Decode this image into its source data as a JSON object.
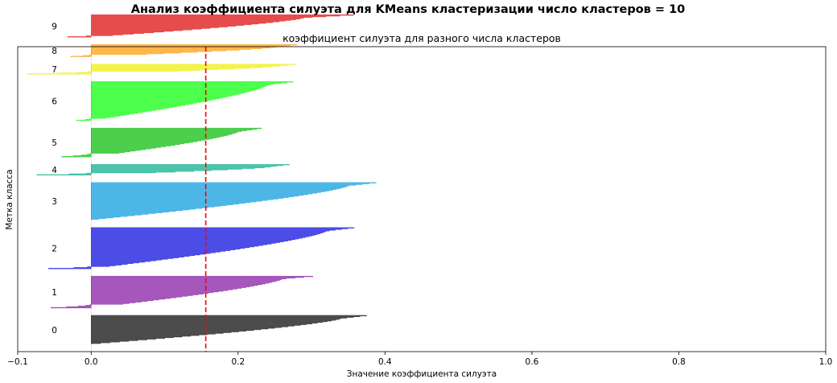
{
  "suptitle": "Анализ коэффициента силуэта для KMeans кластеризации число кластеров = 10",
  "chart_data": {
    "type": "area",
    "subtype": "silhouette",
    "title": "коэффициент силуэта для разного числа кластеров",
    "xlabel": "Значение коэффициента силуэта",
    "ylabel": "Метка класса",
    "xlim": [
      -0.1,
      1.0
    ],
    "xticks": [
      -0.1,
      0.0,
      0.2,
      0.4,
      0.6,
      0.8,
      1.0
    ],
    "xtick_labels": [
      "−0.1",
      "0.0",
      "0.2",
      "0.4",
      "0.6",
      "0.8",
      "1.0"
    ],
    "yticks": [],
    "ylim": [
      0,
      420
    ],
    "silhouette_avg": 0.156,
    "avg_line": {
      "color": "#ff0000",
      "style": "dashed"
    },
    "grid": false,
    "clusters": [
      {
        "label": "0",
        "size": 40,
        "max": 0.375,
        "min": 0.0,
        "knee": 0.34,
        "knee_pos": 0.1,
        "neg_frac": 0.0,
        "color": "#000000"
      },
      {
        "label": "1",
        "size": 44,
        "max": 0.302,
        "min": -0.055,
        "knee": 0.26,
        "knee_pos": 0.08,
        "neg_frac": 0.12,
        "color": "#7f0f9e"
      },
      {
        "label": "2",
        "size": 57,
        "max": 0.358,
        "min": -0.058,
        "knee": 0.32,
        "knee_pos": 0.08,
        "neg_frac": 0.06,
        "color": "#0000dd"
      },
      {
        "label": "3",
        "size": 52,
        "max": 0.388,
        "min": 0.0,
        "knee": 0.35,
        "knee_pos": 0.08,
        "neg_frac": 0.0,
        "color": "#0099dd"
      },
      {
        "label": "4",
        "size": 15,
        "max": 0.27,
        "min": -0.074,
        "knee": 0.24,
        "knee_pos": 0.25,
        "neg_frac": 0.2,
        "color": "#00aa88"
      },
      {
        "label": "5",
        "size": 40,
        "max": 0.232,
        "min": -0.04,
        "knee": 0.2,
        "knee_pos": 0.12,
        "neg_frac": 0.12,
        "color": "#00bb00"
      },
      {
        "label": "6",
        "size": 54,
        "max": 0.275,
        "min": -0.02,
        "knee": 0.24,
        "knee_pos": 0.08,
        "neg_frac": 0.05,
        "color": "#00ff00"
      },
      {
        "label": "7",
        "size": 14,
        "max": 0.278,
        "min": -0.087,
        "knee": 0.25,
        "knee_pos": 0.2,
        "neg_frac": 0.25,
        "color": "#eeee00"
      },
      {
        "label": "8",
        "size": 17,
        "max": 0.28,
        "min": -0.028,
        "knee": 0.25,
        "knee_pos": 0.2,
        "neg_frac": 0.15,
        "color": "#ff9900"
      },
      {
        "label": "9",
        "size": 31,
        "max": 0.357,
        "min": -0.032,
        "knee": 0.29,
        "knee_pos": 0.12,
        "neg_frac": 0.05,
        "color": "#dd0000"
      }
    ]
  }
}
